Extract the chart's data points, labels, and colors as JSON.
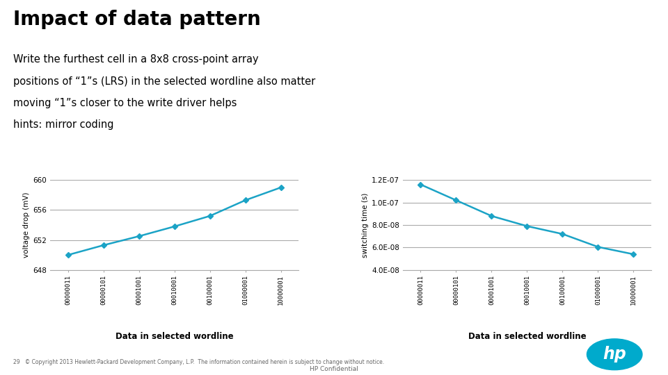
{
  "title": "Impact of data pattern",
  "subtitle_lines": [
    "Write the furthest cell in a 8x8 cross-point array",
    "positions of “1”s (LRS) in the selected wordline also matter",
    "moving “1”s closer to the write driver helps",
    "hints: mirror coding"
  ],
  "x_labels": [
    "00000011",
    "00000101",
    "00001001",
    "00010001",
    "00100001",
    "01000001",
    "10000001"
  ],
  "left_chart": {
    "ylabel": "voltage drop (mV)",
    "xlabel": "Data in selected wordline",
    "ylim": [
      648,
      660
    ],
    "yticks": [
      648,
      652,
      656,
      660
    ],
    "values": [
      650.0,
      651.3,
      652.5,
      653.8,
      655.2,
      657.3,
      659.0
    ]
  },
  "right_chart": {
    "ylabel": "switching time (s)",
    "xlabel": "Data in selected wordline",
    "ylim": [
      4e-08,
      1.2e-07
    ],
    "yticks": [
      4e-08,
      6e-08,
      8e-08,
      1e-07,
      1.2e-07
    ],
    "ytick_labels": [
      "4.0E-08",
      "6.0E-08",
      "8.0E-08",
      "1.0E-07",
      "1.2E-07"
    ],
    "values": [
      1.16e-07,
      1.02e-07,
      8.8e-08,
      7.9e-08,
      7.2e-08,
      6.05e-08,
      5.4e-08
    ]
  },
  "line_color": "#1BA3C6",
  "line_width": 1.8,
  "marker": "D",
  "marker_size": 4,
  "grid_color": "#AAAAAA",
  "bg_color": "#FFFFFF",
  "footer_text": "29   © Copyright 2013 Hewlett-Packard Development Company, L.P.  The information contained herein is subject to change without notice.",
  "footer_center": "HP Confidential"
}
